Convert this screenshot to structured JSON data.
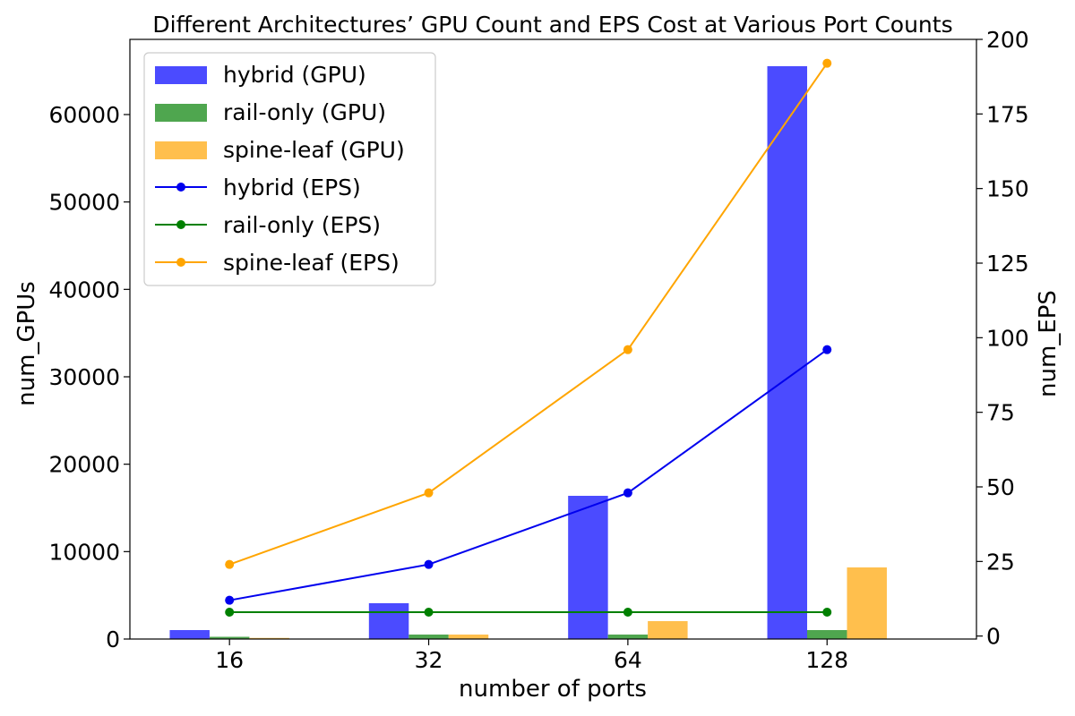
{
  "chart_data": {
    "type": "bar",
    "title": "Different Architectures’ GPU Count and EPS Cost at Various Port Counts",
    "xlabel": "number of ports",
    "ylabel": "num_GPUs",
    "y2label": "num_EPS",
    "categories": [
      "16",
      "32",
      "64",
      "128"
    ],
    "ylim": [
      0,
      68600
    ],
    "y2lim": [
      -1,
      200
    ],
    "yticks": [
      0,
      10000,
      20000,
      30000,
      40000,
      50000,
      60000
    ],
    "y2ticks": [
      0,
      25,
      50,
      75,
      100,
      125,
      150,
      175,
      200
    ],
    "bar_series": [
      {
        "name": "hybrid (GPU)",
        "color": "#4b4bff",
        "values": [
          1024,
          4096,
          16384,
          65536
        ]
      },
      {
        "name": "rail-only (GPU)",
        "color": "#4fa64f",
        "values": [
          256,
          512,
          512,
          1024
        ]
      },
      {
        "name": "spine-leaf (GPU)",
        "color": "#ffbf4d",
        "values": [
          128,
          512,
          2048,
          8192
        ]
      }
    ],
    "line_series": [
      {
        "name": "hybrid (EPS)",
        "color": "#0000ee",
        "values": [
          12,
          24,
          48,
          96
        ]
      },
      {
        "name": "rail-only (EPS)",
        "color": "#008000",
        "values": [
          8,
          8,
          8,
          8
        ]
      },
      {
        "name": "spine-leaf (EPS)",
        "color": "#ffa500",
        "values": [
          24,
          48,
          96,
          192
        ]
      }
    ],
    "legend_position": "top-left",
    "grid": false
  }
}
